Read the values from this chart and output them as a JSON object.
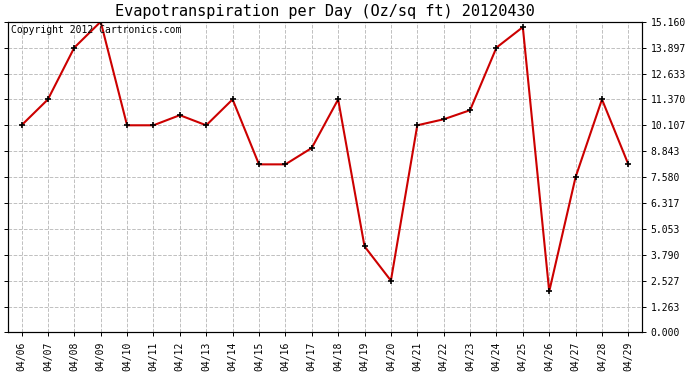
{
  "title": "Evapotranspiration per Day (Oz/sq ft) 20120430",
  "copyright": "Copyright 2012 Cartronics.com",
  "dates": [
    "04/06",
    "04/07",
    "04/08",
    "04/09",
    "04/10",
    "04/11",
    "04/12",
    "04/13",
    "04/14",
    "04/15",
    "04/16",
    "04/17",
    "04/18",
    "04/19",
    "04/20",
    "04/21",
    "04/22",
    "04/23",
    "04/24",
    "04/25",
    "04/26",
    "04/27",
    "04/28",
    "04/29"
  ],
  "values": [
    10.107,
    11.37,
    13.897,
    15.16,
    10.107,
    10.107,
    10.6,
    10.107,
    11.37,
    8.2,
    8.2,
    9.0,
    11.37,
    4.2,
    2.527,
    10.107,
    10.4,
    10.843,
    13.897,
    14.897,
    2.0,
    7.58,
    11.37,
    8.2
  ],
  "line_color": "#cc0000",
  "marker_color": "#000000",
  "background_color": "#ffffff",
  "plot_background": "#ffffff",
  "grid_color": "#c0c0c0",
  "ylim": [
    0.0,
    15.16
  ],
  "yticks": [
    0.0,
    1.263,
    2.527,
    3.79,
    5.053,
    6.317,
    7.58,
    8.843,
    10.107,
    11.37,
    12.633,
    13.897,
    15.16
  ],
  "title_fontsize": 11,
  "copyright_fontsize": 7
}
